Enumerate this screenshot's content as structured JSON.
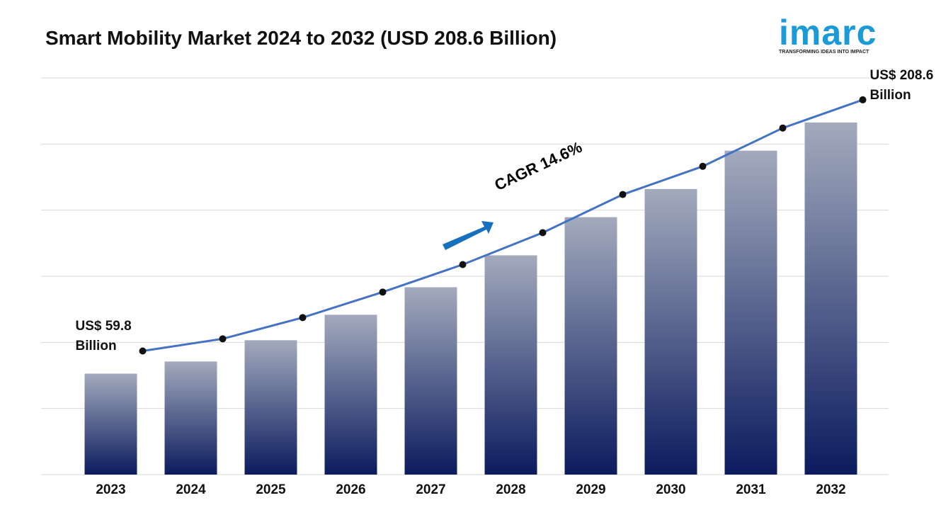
{
  "chart_data": {
    "type": "bar_line",
    "title": "Smart Mobility Market 2024 to 2032 (USD 208.6 Billion)",
    "categories": [
      "2023",
      "2024",
      "2025",
      "2026",
      "2027",
      "2028",
      "2029",
      "2030",
      "2031",
      "2032"
    ],
    "values": [
      59.8,
      67.0,
      79.6,
      94.7,
      111.0,
      129.9,
      152.5,
      169.2,
      191.9,
      208.6
    ],
    "value_labels": [
      "US$ 59.8 Billion",
      null,
      null,
      null,
      null,
      null,
      null,
      null,
      null,
      "US$ 208.6 Billion"
    ],
    "color": "#0b1b5e",
    "line_color": "#4472c4",
    "ylim": [
      0,
      235
    ],
    "grid": true,
    "annotation": "CAGR 14.6%"
  },
  "logo": {
    "name": "imarc",
    "tagline": "TRANSFORMING IDEAS INTO IMPACT"
  }
}
